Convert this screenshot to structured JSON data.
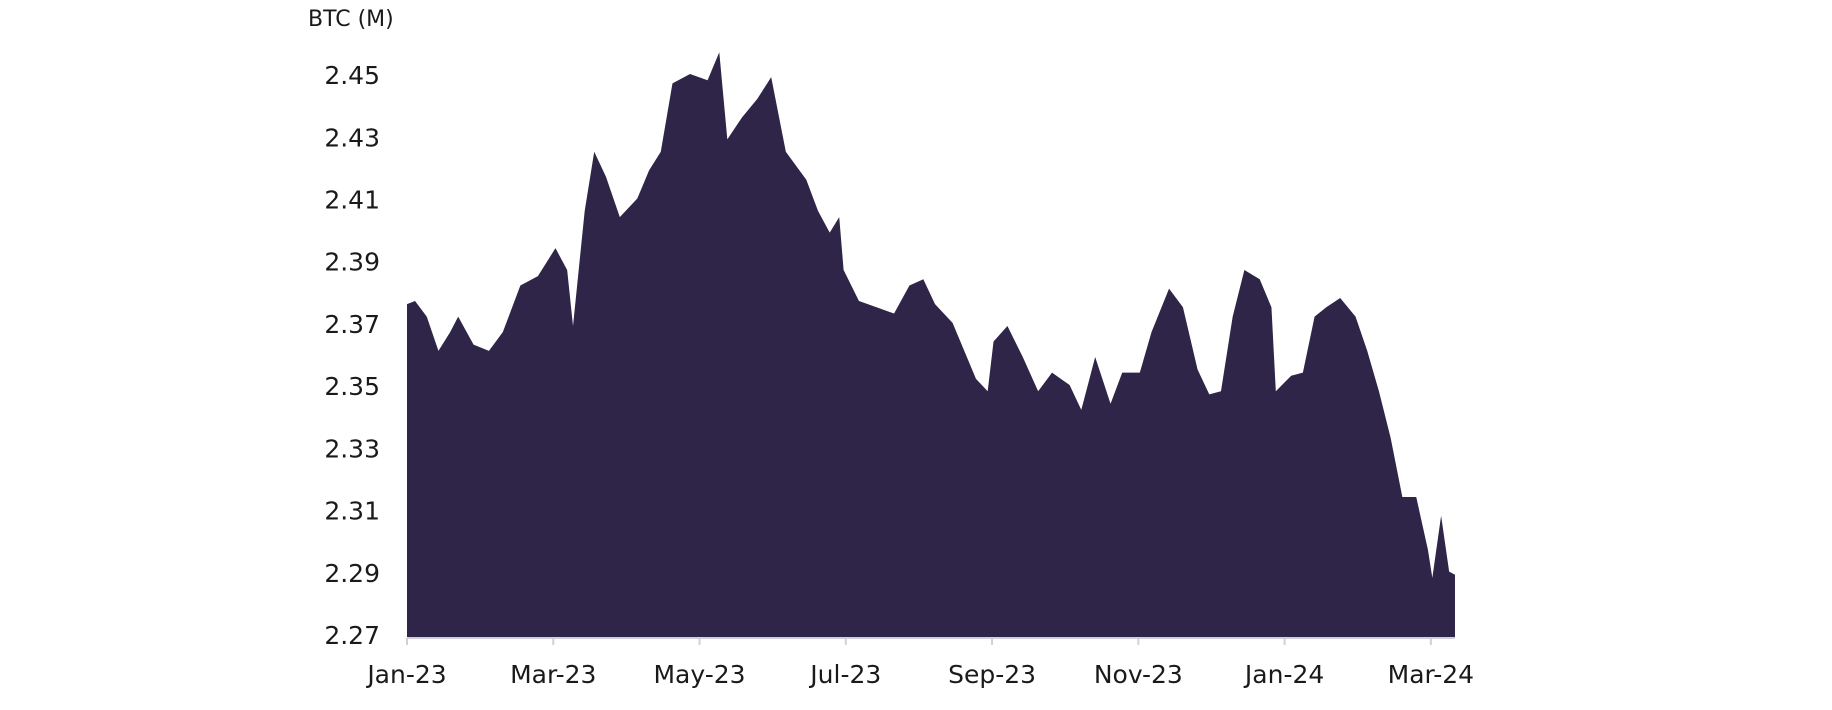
{
  "chart_data": {
    "type": "area",
    "y_axis_label": "BTC (M)",
    "color": "#2e2548",
    "xlim": [
      0,
      14.33
    ],
    "xticks": [
      {
        "value": 0,
        "label": "Jan-23"
      },
      {
        "value": 2,
        "label": "Mar-23"
      },
      {
        "value": 4,
        "label": "May-23"
      },
      {
        "value": 6,
        "label": "Jul-23"
      },
      {
        "value": 8,
        "label": "Sep-23"
      },
      {
        "value": 10,
        "label": "Nov-23"
      },
      {
        "value": 12,
        "label": "Jan-24"
      },
      {
        "value": 14,
        "label": "Mar-24"
      }
    ],
    "ylim": [
      2.27,
      2.46
    ],
    "yticks": [
      2.27,
      2.29,
      2.31,
      2.33,
      2.35,
      2.37,
      2.39,
      2.41,
      2.43,
      2.45
    ],
    "x": [
      0,
      0.11,
      0.27,
      0.43,
      0.59,
      0.7,
      0.91,
      1.12,
      1.31,
      1.55,
      1.79,
      2.03,
      2.19,
      2.27,
      2.43,
      2.56,
      2.72,
      2.91,
      3.15,
      3.31,
      3.47,
      3.63,
      3.87,
      4.11,
      4.27,
      4.38,
      4.58,
      4.79,
      4.98,
      5.18,
      5.46,
      5.62,
      5.78,
      5.91,
      5.97,
      6.18,
      6.42,
      6.66,
      6.87,
      7.06,
      7.22,
      7.46,
      7.62,
      7.78,
      7.94,
      8.02,
      8.21,
      8.42,
      8.63,
      8.82,
      9.06,
      9.22,
      9.41,
      9.62,
      9.78,
      10.02,
      10.18,
      10.42,
      10.61,
      10.81,
      10.97,
      11.13,
      11.29,
      11.45,
      11.66,
      11.82,
      11.88,
      12.09,
      12.25,
      12.41,
      12.57,
      12.76,
      12.97,
      13.13,
      13.29,
      13.45,
      13.61,
      13.8,
      13.96,
      14.02,
      14.14,
      14.25,
      14.33
    ],
    "values": [
      2.377,
      2.378,
      2.373,
      2.362,
      2.368,
      2.373,
      2.364,
      2.362,
      2.368,
      2.383,
      2.386,
      2.395,
      2.388,
      2.37,
      2.407,
      2.426,
      2.418,
      2.405,
      2.411,
      2.42,
      2.426,
      2.448,
      2.451,
      2.449,
      2.458,
      2.43,
      2.437,
      2.443,
      2.45,
      2.426,
      2.417,
      2.407,
      2.4,
      2.405,
      2.388,
      2.378,
      2.376,
      2.374,
      2.383,
      2.385,
      2.377,
      2.371,
      2.362,
      2.353,
      2.349,
      2.365,
      2.37,
      2.36,
      2.349,
      2.355,
      2.351,
      2.343,
      2.36,
      2.345,
      2.355,
      2.355,
      2.368,
      2.382,
      2.376,
      2.356,
      2.348,
      2.349,
      2.373,
      2.388,
      2.385,
      2.376,
      2.349,
      2.354,
      2.355,
      2.373,
      2.376,
      2.379,
      2.373,
      2.362,
      2.349,
      2.334,
      2.315,
      2.315,
      2.298,
      2.289,
      2.309,
      2.291,
      2.29
    ]
  }
}
